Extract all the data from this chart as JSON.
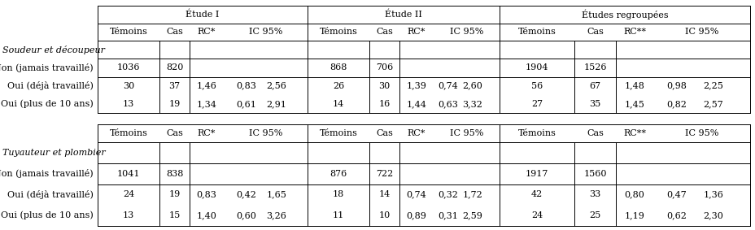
{
  "table1": {
    "section_label": "Soudeur et découpeur",
    "rows": [
      [
        "Non (jamais travaillé)",
        "1036",
        "820",
        "",
        "",
        "",
        "868",
        "706",
        "",
        "",
        "",
        "1904",
        "1526",
        "",
        "",
        ""
      ],
      [
        "Oui (déjà travaillé)",
        "30",
        "37",
        "1,46",
        "0,83",
        "2,56",
        "26",
        "30",
        "1,39",
        "0,74",
        "2,60",
        "56",
        "67",
        "1,48",
        "0,98",
        "2,25"
      ],
      [
        "Oui (plus de 10 ans)",
        "13",
        "19",
        "1,34",
        "0,61",
        "2,91",
        "14",
        "16",
        "1,44",
        "0,63",
        "3,32",
        "27",
        "35",
        "1,45",
        "0,82",
        "2,57"
      ]
    ]
  },
  "table2": {
    "section_label": "Tuyauteur et plombier",
    "rows": [
      [
        "Non (jamais travaillé)",
        "1041",
        "838",
        "",
        "",
        "",
        "876",
        "722",
        "",
        "",
        "",
        "1917",
        "1560",
        "",
        "",
        ""
      ],
      [
        "Oui (déjà travaillé)",
        "24",
        "19",
        "0,83",
        "0,42",
        "1,65",
        "18",
        "14",
        "0,74",
        "0,32",
        "1,72",
        "42",
        "33",
        "0,80",
        "0,47",
        "1,36"
      ],
      [
        "Oui (plus de 10 ans)",
        "13",
        "15",
        "1,40",
        "0,60",
        "3,26",
        "11",
        "10",
        "0,89",
        "0,31",
        "2,59",
        "24",
        "25",
        "1,19",
        "0,62",
        "2,30"
      ]
    ]
  },
  "font_size": 8.0,
  "background_color": "#ffffff",
  "line_color": "#000000",
  "figsize": [
    9.29,
    2.83
  ],
  "dpi": 100
}
